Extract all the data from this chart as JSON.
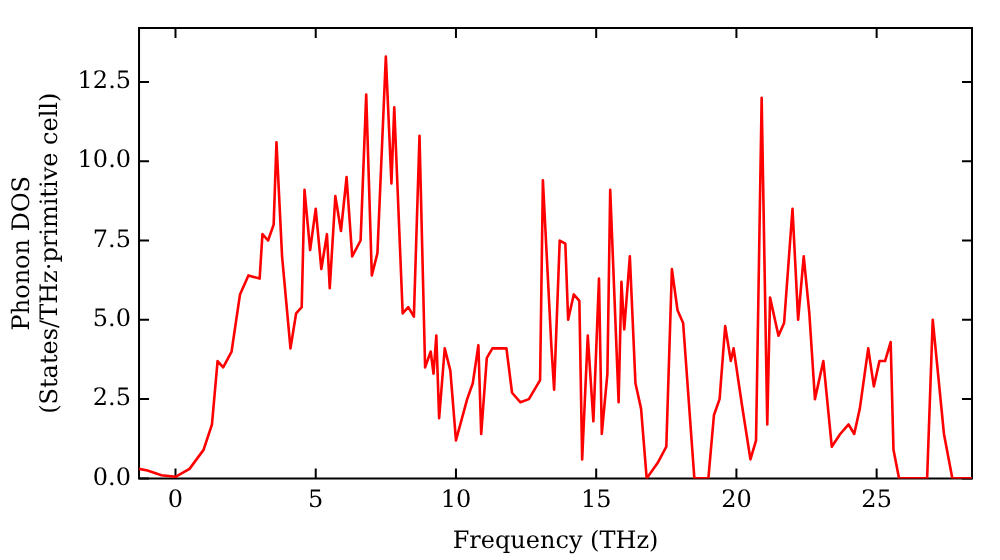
{
  "chart_data": {
    "type": "line",
    "xlabel": "Frequency (THz)",
    "ylabel": "Phonon DOS\n(States/THz·primitive cell)",
    "xlim": [
      -1.3,
      28.4
    ],
    "ylim": [
      0,
      14.2
    ],
    "xticks": [
      0,
      5,
      10,
      15,
      20,
      25
    ],
    "yticks": [
      {
        "value": 0,
        "label": "0.0"
      },
      {
        "value": 2.5,
        "label": "2.5"
      },
      {
        "value": 5,
        "label": "5.0"
      },
      {
        "value": 7.5,
        "label": "7.5"
      },
      {
        "value": 10,
        "label": "10.0"
      },
      {
        "value": 12.5,
        "label": "12.5"
      }
    ],
    "grid": false,
    "legend": false,
    "marker": "none",
    "line_style": "solid",
    "series": [
      {
        "color": "#ff0000",
        "x": [
          -1.3,
          -1,
          -0.5,
          0,
          0.5,
          1,
          1.3,
          1.5,
          1.7,
          2,
          2.3,
          2.6,
          3,
          3.1,
          3.3,
          3.5,
          3.6,
          3.8,
          4.1,
          4.3,
          4.5,
          4.6,
          4.8,
          5,
          5.2,
          5.4,
          5.5,
          5.7,
          5.9,
          6.1,
          6.3,
          6.6,
          6.8,
          7,
          7.2,
          7.5,
          7.7,
          7.8,
          8.1,
          8.3,
          8.5,
          8.7,
          8.9,
          9.1,
          9.2,
          9.3,
          9.4,
          9.6,
          9.8,
          10,
          10.4,
          10.6,
          10.8,
          10.9,
          11.1,
          11.3,
          11.8,
          12,
          12.3,
          12.6,
          13,
          13.1,
          13.4,
          13.5,
          13.7,
          13.9,
          14,
          14.2,
          14.4,
          14.5,
          14.7,
          14.9,
          15.1,
          15.2,
          15.4,
          15.5,
          15.8,
          15.9,
          16,
          16.2,
          16.4,
          16.6,
          16.8,
          17.2,
          17.5,
          17.7,
          17.9,
          18.1,
          18.5,
          19,
          19.2,
          19.4,
          19.6,
          19.8,
          19.9,
          20.2,
          20.5,
          20.7,
          20.9,
          21.1,
          21.2,
          21.5,
          21.7,
          22,
          22.2,
          22.4,
          22.6,
          22.8,
          23.1,
          23.4,
          23.7,
          24,
          24.2,
          24.4,
          24.7,
          24.9,
          25.1,
          25.3,
          25.5,
          25.6,
          25.8,
          26.8,
          27,
          27.2,
          27.4,
          27.7,
          28.4
        ],
        "values": [
          0.3,
          0.25,
          0.1,
          0.05,
          0.3,
          0.9,
          1.7,
          3.7,
          3.5,
          4.0,
          5.8,
          6.4,
          6.3,
          7.7,
          7.5,
          8.0,
          10.6,
          7.0,
          4.1,
          5.2,
          5.4,
          9.1,
          7.2,
          8.5,
          6.6,
          7.7,
          6.0,
          8.9,
          7.8,
          9.5,
          7.0,
          7.5,
          12.1,
          6.4,
          7.1,
          13.3,
          9.3,
          11.7,
          5.2,
          5.4,
          5.1,
          10.8,
          3.5,
          4.0,
          3.3,
          4.5,
          1.9,
          4.1,
          3.4,
          1.2,
          2.5,
          3.0,
          4.2,
          1.4,
          3.8,
          4.1,
          4.1,
          2.7,
          2.4,
          2.5,
          3.1,
          9.4,
          4.2,
          2.8,
          7.5,
          7.4,
          5.0,
          5.8,
          5.6,
          0.6,
          4.5,
          1.8,
          6.3,
          1.4,
          3.3,
          9.1,
          2.4,
          6.2,
          4.7,
          7.0,
          3.0,
          2.2,
          0,
          0.5,
          1.0,
          6.6,
          5.3,
          4.9,
          0,
          0,
          2.0,
          2.5,
          4.8,
          3.7,
          4.1,
          2.3,
          0.6,
          1.2,
          12.0,
          1.7,
          5.7,
          4.5,
          4.9,
          8.5,
          5.0,
          7.0,
          5.2,
          2.5,
          3.7,
          1.0,
          1.4,
          1.7,
          1.4,
          2.2,
          4.1,
          2.9,
          3.7,
          3.7,
          4.3,
          0.9,
          0,
          0,
          5.0,
          3.2,
          1.4,
          0,
          0
        ]
      }
    ]
  }
}
